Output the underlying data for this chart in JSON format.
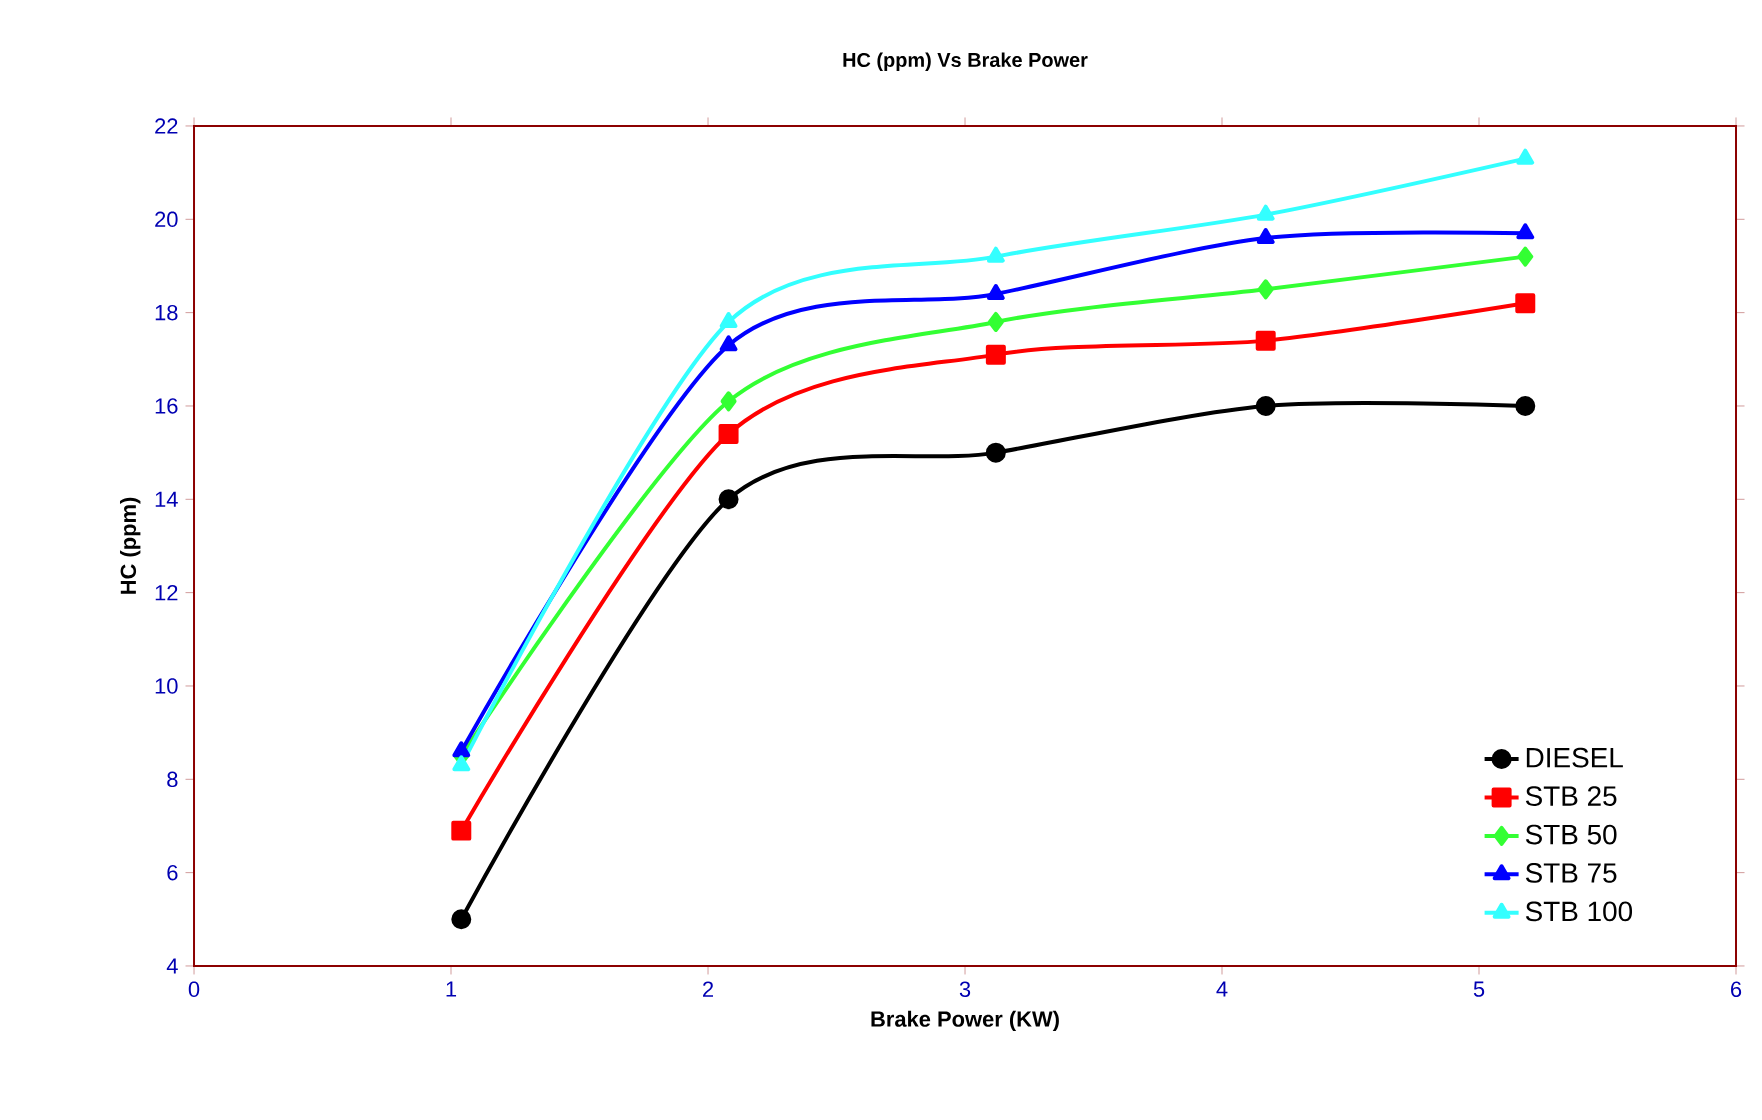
{
  "chart_data": {
    "type": "line",
    "title": "HC (ppm) Vs Brake Power",
    "xlabel": "Brake Power (KW)",
    "ylabel": "HC (ppm)",
    "x": [
      1.04,
      2.08,
      3.12,
      4.17,
      5.18
    ],
    "xlim": [
      0,
      6
    ],
    "xticks": [
      0,
      1,
      2,
      3,
      4,
      5,
      6
    ],
    "ylim": [
      4,
      22
    ],
    "yticks": [
      4,
      6,
      8,
      10,
      12,
      14,
      16,
      18,
      20,
      22
    ],
    "grid": false,
    "legend": "bottom right",
    "line_style": "solid",
    "series": [
      {
        "name": "DIESEL",
        "color": "#000000",
        "marker": "circle",
        "values": [
          5,
          14,
          15,
          16,
          16
        ]
      },
      {
        "name": "STB 25",
        "color": "#ff0000",
        "marker": "square",
        "values": [
          6.9,
          15.4,
          17.1,
          17.4,
          18.2
        ]
      },
      {
        "name": "STB 50",
        "color": "#33ff33",
        "marker": "diamond",
        "values": [
          8.5,
          16.1,
          17.8,
          18.5,
          19.2
        ]
      },
      {
        "name": "STB 75",
        "color": "#0000ff",
        "marker": "triangle",
        "values": [
          8.6,
          17.3,
          18.4,
          19.6,
          19.7
        ]
      },
      {
        "name": "STB 100",
        "color": "#33ffff",
        "marker": "triangle",
        "values": [
          8.3,
          17.8,
          19.2,
          20.1,
          21.3
        ]
      }
    ]
  }
}
